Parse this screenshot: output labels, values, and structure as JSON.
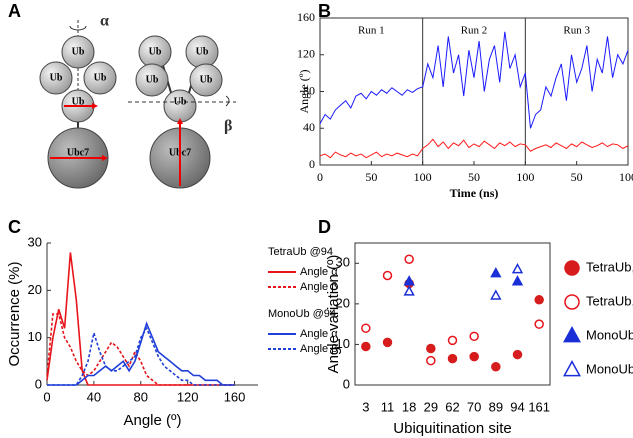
{
  "diagram": {
    "panel": "A",
    "left": [
      "Ub",
      "Ub",
      "Ub",
      "Ub",
      "Ubc7"
    ],
    "right": [
      "Ub",
      "Ub",
      "Ub",
      "Ub",
      "Ub",
      "Ubc7"
    ],
    "alpha": "α",
    "beta": "β"
  },
  "chart_data": [
    {
      "type": "line",
      "panel": "B",
      "ylabel": "Angle (º)",
      "xlabel": "Time (ns)",
      "annotations": [
        "Run 1",
        "Run 2",
        "Run 3"
      ],
      "xlim": [
        0,
        300
      ],
      "ylim": [
        0,
        160
      ],
      "xticks": [
        0,
        50,
        100,
        {
          "value": 150,
          "label": "50"
        },
        {
          "value": 200,
          "label": "100"
        },
        {
          "value": 250,
          "label": "50"
        },
        {
          "value": 300,
          "label": "100"
        }
      ],
      "yticks": [
        0,
        40,
        80,
        120,
        160
      ],
      "x": [
        0,
        5,
        10,
        15,
        20,
        25,
        30,
        35,
        40,
        45,
        50,
        55,
        60,
        65,
        70,
        75,
        80,
        85,
        90,
        95,
        100,
        105,
        110,
        115,
        120,
        125,
        130,
        135,
        140,
        145,
        150,
        155,
        160,
        165,
        170,
        175,
        180,
        185,
        190,
        195,
        200,
        205,
        210,
        215,
        220,
        225,
        230,
        235,
        240,
        245,
        250,
        255,
        260,
        265,
        270,
        275,
        280,
        285,
        290,
        295,
        300
      ],
      "series": [
        {
          "name": "Angle α",
          "color": "#1a1aff",
          "values": [
            45,
            55,
            50,
            60,
            65,
            70,
            62,
            75,
            78,
            72,
            80,
            76,
            82,
            78,
            84,
            80,
            76,
            82,
            79,
            83,
            85,
            110,
            95,
            130,
            85,
            140,
            100,
            120,
            75,
            125,
            95,
            135,
            80,
            115,
            130,
            90,
            145,
            105,
            120,
            85,
            100,
            40,
            55,
            60,
            85,
            75,
            95,
            110,
            70,
            120,
            90,
            105,
            130,
            80,
            115,
            100,
            140,
            95,
            120,
            110,
            125
          ]
        },
        {
          "name": "Angle β",
          "color": "#ff1a1a",
          "values": [
            10,
            12,
            8,
            14,
            11,
            9,
            13,
            10,
            12,
            8,
            11,
            14,
            9,
            12,
            10,
            13,
            11,
            9,
            12,
            10,
            18,
            22,
            28,
            20,
            25,
            18,
            24,
            21,
            27,
            19,
            23,
            20,
            26,
            22,
            18,
            24,
            21,
            25,
            20,
            23,
            22,
            15,
            18,
            20,
            22,
            19,
            24,
            21,
            18,
            23,
            20,
            25,
            22,
            19,
            21,
            24,
            20,
            23,
            22,
            18,
            21
          ]
        }
      ]
    },
    {
      "type": "line",
      "panel": "C",
      "ylabel": "Occurrence (%)",
      "xlabel": "Angle (º)",
      "xlim": [
        0,
        180
      ],
      "ylim": [
        0,
        30
      ],
      "xticks": [
        0,
        40,
        80,
        120,
        160
      ],
      "yticks": [
        0,
        10,
        20,
        30
      ],
      "legend_groups": [
        "TetraUb @94",
        "MonoUb @94"
      ],
      "x": [
        0,
        5,
        10,
        15,
        20,
        25,
        30,
        35,
        40,
        45,
        50,
        55,
        60,
        65,
        70,
        75,
        80,
        85,
        90,
        95,
        100,
        105,
        110,
        115,
        120,
        125,
        130,
        135,
        140,
        145,
        150,
        155,
        160
      ],
      "series": [
        {
          "name": "Angle α",
          "group": 0,
          "dash": false,
          "color": "#e8141b",
          "values": [
            1,
            10,
            16,
            12,
            28,
            18,
            3,
            0,
            0,
            0,
            0,
            0,
            0,
            0,
            0,
            0,
            0,
            0,
            0,
            0,
            0,
            0,
            0,
            0,
            0,
            0,
            0,
            0,
            0,
            0,
            0,
            0,
            0
          ]
        },
        {
          "name": "Angle β",
          "group": 0,
          "dash": true,
          "color": "#e8141b",
          "values": [
            2,
            15,
            15,
            10,
            8,
            5,
            3,
            2,
            3,
            5,
            7,
            9,
            8,
            6,
            4,
            7,
            5,
            2,
            1,
            0,
            0,
            0,
            0,
            0,
            0,
            0,
            0,
            0,
            0,
            0,
            0,
            0,
            0
          ]
        },
        {
          "name": "Angle α",
          "group": 1,
          "dash": false,
          "color": "#1f3fd8",
          "values": [
            0,
            0,
            0,
            0,
            0,
            0,
            1,
            2,
            2,
            3,
            4,
            3,
            4,
            5,
            3,
            5,
            9,
            13,
            10,
            7,
            6,
            5,
            4,
            3,
            3,
            2,
            2,
            1,
            1,
            1,
            0,
            0,
            0
          ]
        },
        {
          "name": "Angle β",
          "group": 1,
          "dash": true,
          "color": "#1f3fd8",
          "values": [
            0,
            0,
            0,
            0,
            0,
            0,
            2,
            5,
            11,
            7,
            4,
            3,
            3,
            4,
            5,
            6,
            10,
            12,
            9,
            6,
            4,
            3,
            2,
            1,
            1,
            0,
            0,
            0,
            0,
            0,
            0,
            0,
            0
          ]
        }
      ]
    },
    {
      "type": "scatter",
      "panel": "D",
      "ylabel": "Angle variation (º)",
      "xlabel": "Ubiquitination site",
      "ylim": [
        0,
        35
      ],
      "yticks": [
        0,
        10,
        20,
        30
      ],
      "categories": [
        "3",
        "11",
        "18",
        "29",
        "62",
        "70",
        "89",
        "94",
        "161"
      ],
      "series": [
        {
          "name": "TetraUb, α",
          "color": "#d61c1c",
          "marker": "circle",
          "filled": true,
          "values": [
            9.5,
            10.5,
            25,
            9,
            6.5,
            7,
            4.5,
            7.5,
            21
          ]
        },
        {
          "name": "TetraUb, β",
          "color": "#e8141b",
          "marker": "circle",
          "filled": false,
          "values": [
            14,
            27,
            31,
            6,
            11,
            12,
            null,
            null,
            15
          ]
        },
        {
          "name": "MonoUb, α",
          "color": "#1a2fd8",
          "marker": "triangle",
          "filled": true,
          "values": [
            null,
            null,
            25.5,
            null,
            null,
            null,
            27.5,
            25.5,
            null
          ]
        },
        {
          "name": "MonoUb, β",
          "color": "#1a2fd8",
          "marker": "triangle",
          "filled": false,
          "values": [
            null,
            null,
            23,
            null,
            null,
            null,
            22,
            28.5,
            null
          ]
        }
      ]
    }
  ]
}
